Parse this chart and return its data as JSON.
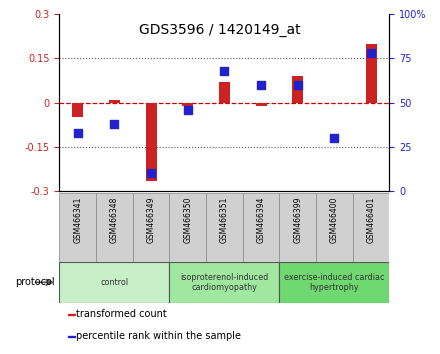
{
  "title": "GDS3596 / 1420149_at",
  "samples": [
    "GSM466341",
    "GSM466348",
    "GSM466349",
    "GSM466350",
    "GSM466351",
    "GSM466394",
    "GSM466399",
    "GSM466400",
    "GSM466401"
  ],
  "transformed_count": [
    -0.05,
    0.01,
    -0.265,
    -0.01,
    0.07,
    -0.01,
    0.09,
    0.0,
    0.2
  ],
  "percentile_rank": [
    33,
    38,
    10,
    46,
    68,
    60,
    60,
    30,
    78
  ],
  "ylim_left": [
    -0.3,
    0.3
  ],
  "ylim_right": [
    0,
    100
  ],
  "yticks_left": [
    -0.3,
    -0.15,
    0.0,
    0.15,
    0.3
  ],
  "yticks_right": [
    0,
    25,
    50,
    75,
    100
  ],
  "ytick_labels_left": [
    "-0.3",
    "-0.15",
    "0",
    "0.15",
    "0.3"
  ],
  "ytick_labels_right": [
    "0",
    "25",
    "50",
    "75",
    "100%"
  ],
  "groups": [
    {
      "label": "control",
      "start": 0,
      "end": 3,
      "color": "#c8f0c8"
    },
    {
      "label": "isoproterenol-induced\ncardiomyopathy",
      "start": 3,
      "end": 6,
      "color": "#a0e8a0"
    },
    {
      "label": "exercise-induced cardiac\nhypertrophy",
      "start": 6,
      "end": 9,
      "color": "#70d870"
    }
  ],
  "bar_color": "#cc2222",
  "dot_color": "#2222cc",
  "zero_line_color": "#cc0000",
  "dotted_line_color": "#555555",
  "bg_color": "#ffffff",
  "plot_bg": "#ffffff",
  "sample_bg": "#d0d0d0",
  "legend_items": [
    {
      "label": "transformed count",
      "color": "#cc2222"
    },
    {
      "label": "percentile rank within the sample",
      "color": "#2222cc"
    }
  ],
  "protocol_label": "protocol",
  "bar_width": 0.3,
  "dot_size": 28
}
